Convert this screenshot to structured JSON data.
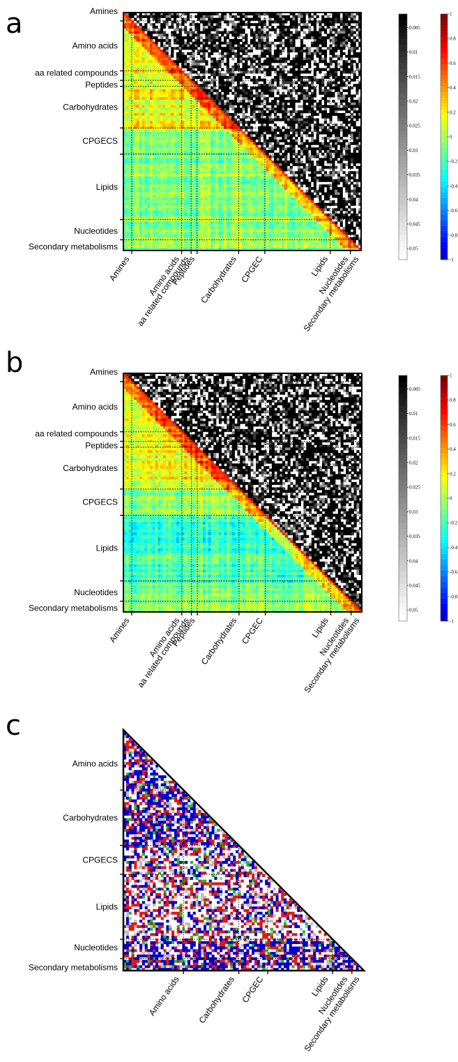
{
  "panels": [
    {
      "id": "a",
      "letter": "a",
      "seed": 11,
      "type": "heatmap",
      "row_labels": [
        "Amines",
        "Amino acids",
        "aa related compounds",
        "Peptides",
        "Carbohydrates",
        "CPGECS",
        "Lipids",
        "Nucleotides",
        "Secondary metabolisms"
      ],
      "col_labels": [
        "Amines",
        "Amino acids",
        "aa related compounds",
        "Peptides",
        "Carbohydrates",
        "CPGEC",
        "Lipids",
        "Nucleotides",
        "Secondary metabolisms"
      ],
      "group_boundaries": [
        0.035,
        0.245,
        0.285,
        0.31,
        0.485,
        0.595,
        0.87,
        0.955,
        1.0
      ],
      "pvalue_colorbar": {
        "ticks": [
          "0.005",
          "0.01",
          "0.015",
          "0.02",
          "0.025",
          "0.03",
          "0.035",
          "0.04",
          "0.045",
          "0.05"
        ],
        "range": [
          0,
          0.05
        ]
      },
      "corr_colorbar": {
        "ticks": [
          "1",
          "0.8",
          "0.6",
          "0.4",
          "0.2",
          "0",
          "-0.2",
          "-0.4",
          "-0.6",
          "-0.8",
          "-1"
        ],
        "range": [
          -1,
          1
        ]
      }
    },
    {
      "id": "b",
      "letter": "b",
      "seed": 37,
      "type": "heatmap",
      "row_labels": [
        "Amines",
        "Amino acids",
        "aa related compounds",
        "Peptides",
        "Carbohydrates",
        "CPGECS",
        "Lipids",
        "Nucleotides",
        "Secondary metabolisms"
      ],
      "col_labels": [
        "Amines",
        "Amino acids",
        "aa related compounds",
        "Peptides",
        "Carbohydrates",
        "CPGEC",
        "Lipids",
        "Nucleotides",
        "Secondary metabolisms"
      ],
      "group_boundaries": [
        0.035,
        0.245,
        0.285,
        0.31,
        0.485,
        0.595,
        0.87,
        0.955,
        1.0
      ],
      "pvalue_colorbar": {
        "ticks": [
          "0.005",
          "0.01",
          "0.015",
          "0.02",
          "0.025",
          "0.03",
          "0.035",
          "0.04",
          "0.045",
          "0.05"
        ],
        "range": [
          0,
          0.05
        ]
      },
      "corr_colorbar": {
        "ticks": [
          "1",
          "0.8",
          "0.6",
          "0.4",
          "0.2",
          "0",
          "-0.2",
          "-0.4",
          "-0.6",
          "-0.8",
          "-1"
        ],
        "range": [
          -1,
          1
        ]
      }
    },
    {
      "id": "c",
      "letter": "c",
      "seed": 73,
      "type": "heatmap",
      "row_labels": [
        "Amino acids",
        "Carbohydrates",
        "CPGECS",
        "Lipids",
        "Nucleotides",
        "Secondary metabolisms"
      ],
      "col_labels": [
        "Amino acids",
        "Carbohydrates",
        "CPGEC",
        "Lipids",
        "Nucleotides",
        "Secondary metabolisms"
      ],
      "group_boundaries": [
        0.25,
        0.48,
        0.6,
        0.87,
        0.95,
        1.0
      ],
      "category_colors": [
        "#0000cc",
        "#e01818",
        "#22bb22",
        "#bdbdbd",
        "#ffffff"
      ]
    }
  ]
}
